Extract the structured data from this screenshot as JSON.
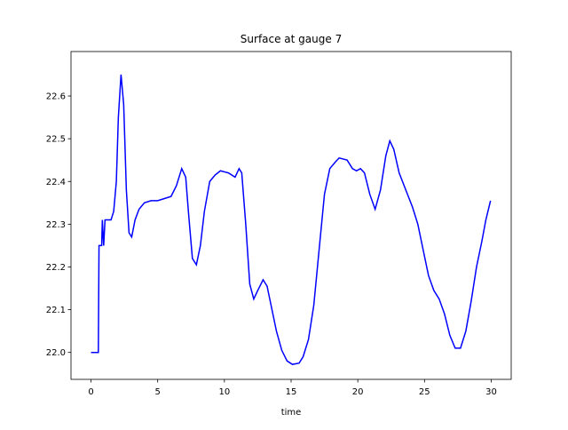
{
  "chart_data": {
    "type": "line",
    "title": "Surface at gauge 7",
    "xlabel": "time",
    "x": [
      0,
      0.55,
      0.6,
      0.8,
      0.85,
      0.95,
      1.05,
      1.5,
      1.7,
      1.9,
      2.05,
      2.25,
      2.45,
      2.65,
      2.85,
      3.05,
      3.3,
      3.6,
      4.0,
      4.5,
      5.0,
      5.5,
      6.0,
      6.4,
      6.8,
      7.1,
      7.3,
      7.6,
      7.9,
      8.2,
      8.5,
      8.9,
      9.3,
      9.7,
      10.3,
      10.8,
      11.1,
      11.3,
      11.6,
      11.9,
      12.2,
      12.5,
      12.9,
      13.2,
      13.5,
      13.9,
      14.3,
      14.7,
      15.1,
      15.6,
      15.9,
      16.3,
      16.7,
      17.1,
      17.5,
      17.9,
      18.3,
      18.6,
      19.2,
      19.6,
      19.9,
      20.2,
      20.5,
      20.9,
      21.3,
      21.7,
      22.1,
      22.4,
      22.7,
      23.1,
      23.6,
      24.1,
      24.5,
      24.9,
      25.3,
      25.7,
      26.1,
      26.5,
      26.9,
      27.3,
      27.7,
      28.1,
      28.5,
      28.9,
      29.3,
      29.6,
      29.95
    ],
    "series": [
      {
        "color": "#0000ff",
        "values": [
          22.0,
          22.0,
          22.25,
          22.25,
          22.31,
          22.25,
          22.31,
          22.31,
          22.33,
          22.4,
          22.55,
          22.65,
          22.58,
          22.38,
          22.28,
          22.27,
          22.31,
          22.335,
          22.35,
          22.355,
          22.355,
          22.36,
          22.365,
          22.39,
          22.43,
          22.41,
          22.33,
          22.22,
          22.205,
          22.25,
          22.33,
          22.4,
          22.415,
          22.425,
          22.42,
          22.41,
          22.43,
          22.42,
          22.3,
          22.16,
          22.125,
          22.145,
          22.17,
          22.155,
          22.11,
          22.05,
          22.005,
          21.98,
          21.972,
          21.975,
          21.99,
          22.03,
          22.11,
          22.24,
          22.37,
          22.43,
          22.445,
          22.455,
          22.45,
          22.43,
          22.425,
          22.43,
          22.42,
          22.37,
          22.335,
          22.38,
          22.46,
          22.495,
          22.475,
          22.42,
          22.38,
          22.34,
          22.3,
          22.24,
          22.18,
          22.145,
          22.125,
          22.09,
          22.04,
          22.01,
          22.01,
          22.05,
          22.12,
          22.2,
          22.26,
          22.31,
          22.355
        ]
      }
    ],
    "xlim": [
      -1.5,
      31.5
    ],
    "xticks": [
      0,
      5,
      10,
      15,
      20,
      25,
      30
    ],
    "ylim": [
      21.937,
      22.704
    ],
    "yticks": [
      {
        "value": 22,
        "label": "22.0"
      },
      22.1,
      22.2,
      22.3,
      22.4,
      22.5,
      22.6
    ]
  }
}
